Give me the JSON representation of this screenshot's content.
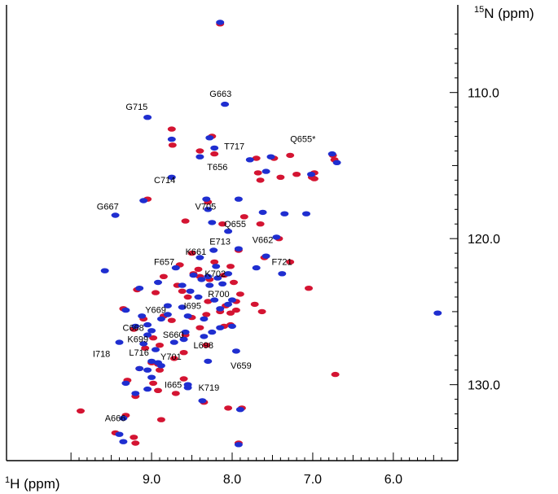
{
  "chart_data": {
    "type": "scatter",
    "title": "",
    "xlabel": {
      "sup": "1",
      "main": "H (ppm)"
    },
    "ylabel": {
      "sup": "15",
      "main": "N (ppm)"
    },
    "x_reversed": true,
    "y_reversed": true,
    "xlim": [
      10.8,
      5.2
    ],
    "ylim": [
      104.0,
      135.2
    ],
    "x_ticks": [
      {
        "value": 9.0,
        "label": "9.0"
      },
      {
        "value": 8.0,
        "label": "8.0"
      },
      {
        "value": 7.0,
        "label": "7.0"
      },
      {
        "value": 6.0,
        "label": "6.0"
      }
    ],
    "y_ticks": [
      {
        "value": 110.0,
        "label": "110.0"
      },
      {
        "value": 120.0,
        "label": "120.0"
      },
      {
        "value": 130.0,
        "label": "130.0"
      }
    ],
    "series": [
      {
        "color": "#d41432",
        "points": [
          [
            8.15,
            105.3
          ],
          [
            8.25,
            113.0
          ],
          [
            8.75,
            112.5
          ],
          [
            8.74,
            113.6
          ],
          [
            8.4,
            114.0
          ],
          [
            8.22,
            114.2
          ],
          [
            7.7,
            114.5
          ],
          [
            7.48,
            114.5
          ],
          [
            7.28,
            114.3
          ],
          [
            6.75,
            114.3
          ],
          [
            6.73,
            114.6
          ],
          [
            6.98,
            115.5
          ],
          [
            7.01,
            115.8
          ],
          [
            7.68,
            115.5
          ],
          [
            7.65,
            116.0
          ],
          [
            7.4,
            115.8
          ],
          [
            7.2,
            115.6
          ],
          [
            6.98,
            115.9
          ],
          [
            8.3,
            117.5
          ],
          [
            9.05,
            117.3
          ],
          [
            8.58,
            118.8
          ],
          [
            8.12,
            119.0
          ],
          [
            7.85,
            118.5
          ],
          [
            7.65,
            119.0
          ],
          [
            7.42,
            120.0
          ],
          [
            7.92,
            120.8
          ],
          [
            8.5,
            121.0
          ],
          [
            7.6,
            121.3
          ],
          [
            7.28,
            121.6
          ],
          [
            8.65,
            121.8
          ],
          [
            8.48,
            122.4
          ],
          [
            8.42,
            122.1
          ],
          [
            8.22,
            121.6
          ],
          [
            8.02,
            121.9
          ],
          [
            8.85,
            122.6
          ],
          [
            8.68,
            123.2
          ],
          [
            8.4,
            122.6
          ],
          [
            8.28,
            122.8
          ],
          [
            8.1,
            122.5
          ],
          [
            7.98,
            123.0
          ],
          [
            9.18,
            123.5
          ],
          [
            8.95,
            123.7
          ],
          [
            8.62,
            123.6
          ],
          [
            8.55,
            124.0
          ],
          [
            7.9,
            123.8
          ],
          [
            8.3,
            124.3
          ],
          [
            8.08,
            124.6
          ],
          [
            7.95,
            124.3
          ],
          [
            7.72,
            124.5
          ],
          [
            7.05,
            123.4
          ],
          [
            7.63,
            125.0
          ],
          [
            9.35,
            124.8
          ],
          [
            9.1,
            125.5
          ],
          [
            8.85,
            125.3
          ],
          [
            8.75,
            125.6
          ],
          [
            8.5,
            125.4
          ],
          [
            8.32,
            125.2
          ],
          [
            8.15,
            125.0
          ],
          [
            8.02,
            125.1
          ],
          [
            7.95,
            124.9
          ],
          [
            9.22,
            126.2
          ],
          [
            8.98,
            126.8
          ],
          [
            8.58,
            126.6
          ],
          [
            8.4,
            126.1
          ],
          [
            8.1,
            126.0
          ],
          [
            8.02,
            125.9
          ],
          [
            9.08,
            127.5
          ],
          [
            8.9,
            127.3
          ],
          [
            8.6,
            127.8
          ],
          [
            8.32,
            127.3
          ],
          [
            9.0,
            128.5
          ],
          [
            8.92,
            128.6
          ],
          [
            8.72,
            128.2
          ],
          [
            9.15,
            128.9
          ],
          [
            8.9,
            129.0
          ],
          [
            9.3,
            129.7
          ],
          [
            8.98,
            129.9
          ],
          [
            8.6,
            129.6
          ],
          [
            8.92,
            130.4
          ],
          [
            8.7,
            130.6
          ],
          [
            9.2,
            130.8
          ],
          [
            6.72,
            129.3
          ],
          [
            8.35,
            131.2
          ],
          [
            8.05,
            131.6
          ],
          [
            7.88,
            131.6
          ],
          [
            9.88,
            131.8
          ],
          [
            9.32,
            132.1
          ],
          [
            8.88,
            132.4
          ],
          [
            9.45,
            133.3
          ],
          [
            9.22,
            133.6
          ],
          [
            9.2,
            134.0
          ],
          [
            7.92,
            134.0
          ]
        ]
      },
      {
        "color": "#1f2ed0",
        "points": [
          [
            8.15,
            105.2
          ],
          [
            8.09,
            110.8
          ],
          [
            9.05,
            111.7
          ],
          [
            8.28,
            113.1
          ],
          [
            8.75,
            113.2
          ],
          [
            8.22,
            113.8
          ],
          [
            8.4,
            114.4
          ],
          [
            7.78,
            114.6
          ],
          [
            7.52,
            114.4
          ],
          [
            6.7,
            114.8
          ],
          [
            6.76,
            114.2
          ],
          [
            8.75,
            115.8
          ],
          [
            7.58,
            115.4
          ],
          [
            7.02,
            115.6
          ],
          [
            9.1,
            117.4
          ],
          [
            8.32,
            117.3
          ],
          [
            7.92,
            117.3
          ],
          [
            8.3,
            118.0
          ],
          [
            9.45,
            118.4
          ],
          [
            7.62,
            118.2
          ],
          [
            7.35,
            118.3
          ],
          [
            7.08,
            118.3
          ],
          [
            8.25,
            118.9
          ],
          [
            8.05,
            119.5
          ],
          [
            7.45,
            119.9
          ],
          [
            8.23,
            120.8
          ],
          [
            7.92,
            120.7
          ],
          [
            7.58,
            121.2
          ],
          [
            8.4,
            121.3
          ],
          [
            9.58,
            122.2
          ],
          [
            8.7,
            122.0
          ],
          [
            8.2,
            121.9
          ],
          [
            7.38,
            122.4
          ],
          [
            8.48,
            122.5
          ],
          [
            8.38,
            122.8
          ],
          [
            8.3,
            122.6
          ],
          [
            8.18,
            122.7
          ],
          [
            8.05,
            122.4
          ],
          [
            7.7,
            122.0
          ],
          [
            8.62,
            123.2
          ],
          [
            8.92,
            123.0
          ],
          [
            8.52,
            123.6
          ],
          [
            8.28,
            123.2
          ],
          [
            8.12,
            123.1
          ],
          [
            9.15,
            123.4
          ],
          [
            8.42,
            124.0
          ],
          [
            8.22,
            124.2
          ],
          [
            8.0,
            124.2
          ],
          [
            9.32,
            124.9
          ],
          [
            8.8,
            124.6
          ],
          [
            8.62,
            124.7
          ],
          [
            8.15,
            124.8
          ],
          [
            8.05,
            124.5
          ],
          [
            9.12,
            125.3
          ],
          [
            9.05,
            125.9
          ],
          [
            8.88,
            125.5
          ],
          [
            8.8,
            125.2
          ],
          [
            8.55,
            125.3
          ],
          [
            8.35,
            125.5
          ],
          [
            9.2,
            126.0
          ],
          [
            9.0,
            126.3
          ],
          [
            8.58,
            126.4
          ],
          [
            8.25,
            126.4
          ],
          [
            8.0,
            126.0
          ],
          [
            9.05,
            126.6
          ],
          [
            8.6,
            126.9
          ],
          [
            8.35,
            126.7
          ],
          [
            8.15,
            126.1
          ],
          [
            9.4,
            127.1
          ],
          [
            9.1,
            127.2
          ],
          [
            8.95,
            127.6
          ],
          [
            8.72,
            127.1
          ],
          [
            7.95,
            127.7
          ],
          [
            9.0,
            128.4
          ],
          [
            8.92,
            128.5
          ],
          [
            8.3,
            128.4
          ],
          [
            9.15,
            128.9
          ],
          [
            9.05,
            129.0
          ],
          [
            8.88,
            128.7
          ],
          [
            9.32,
            129.9
          ],
          [
            9.0,
            129.5
          ],
          [
            8.55,
            130.0
          ],
          [
            9.2,
            130.6
          ],
          [
            9.05,
            130.3
          ],
          [
            8.55,
            130.2
          ],
          [
            9.35,
            132.3
          ],
          [
            9.4,
            133.4
          ],
          [
            9.35,
            133.9
          ],
          [
            5.45,
            125.1
          ],
          [
            7.92,
            134.1
          ],
          [
            8.37,
            131.1
          ],
          [
            7.9,
            131.7
          ]
        ]
      }
    ],
    "annotations": [
      {
        "text": "G663",
        "x": 8.28,
        "y": 110.3
      },
      {
        "text": "G715",
        "x": 9.32,
        "y": 111.2
      },
      {
        "text": "T717",
        "x": 8.1,
        "y": 113.9
      },
      {
        "text": "Q655*",
        "x": 7.28,
        "y": 113.4
      },
      {
        "text": "T656",
        "x": 8.31,
        "y": 115.3
      },
      {
        "text": "C714",
        "x": 8.97,
        "y": 116.2
      },
      {
        "text": "G667",
        "x": 9.68,
        "y": 118.0
      },
      {
        "text": "V705",
        "x": 8.46,
        "y": 118.0
      },
      {
        "text": "Q655",
        "x": 8.1,
        "y": 119.2
      },
      {
        "text": "E713",
        "x": 8.28,
        "y": 120.4
      },
      {
        "text": "V662",
        "x": 7.75,
        "y": 120.3
      },
      {
        "text": "K661",
        "x": 8.58,
        "y": 121.1
      },
      {
        "text": "F657",
        "x": 8.97,
        "y": 121.8
      },
      {
        "text": "F721",
        "x": 7.51,
        "y": 121.8
      },
      {
        "text": "K702",
        "x": 8.34,
        "y": 122.6
      },
      {
        "text": "R700",
        "x": 8.3,
        "y": 124.0
      },
      {
        "text": "Y669",
        "x": 9.08,
        "y": 125.1
      },
      {
        "text": "I695",
        "x": 8.6,
        "y": 124.8
      },
      {
        "text": "C668",
        "x": 9.36,
        "y": 126.3
      },
      {
        "text": "S660",
        "x": 8.86,
        "y": 126.8
      },
      {
        "text": "K699",
        "x": 9.3,
        "y": 127.1
      },
      {
        "text": "L698",
        "x": 8.48,
        "y": 127.5
      },
      {
        "text": "L716",
        "x": 9.28,
        "y": 128.0
      },
      {
        "text": "Y701",
        "x": 8.89,
        "y": 128.3
      },
      {
        "text": "I718",
        "x": 9.73,
        "y": 128.1
      },
      {
        "text": "V659",
        "x": 8.02,
        "y": 128.9
      },
      {
        "text": "I665",
        "x": 8.84,
        "y": 130.2
      },
      {
        "text": "K719",
        "x": 8.42,
        "y": 130.4
      },
      {
        "text": "A666",
        "x": 9.58,
        "y": 132.5
      }
    ]
  }
}
